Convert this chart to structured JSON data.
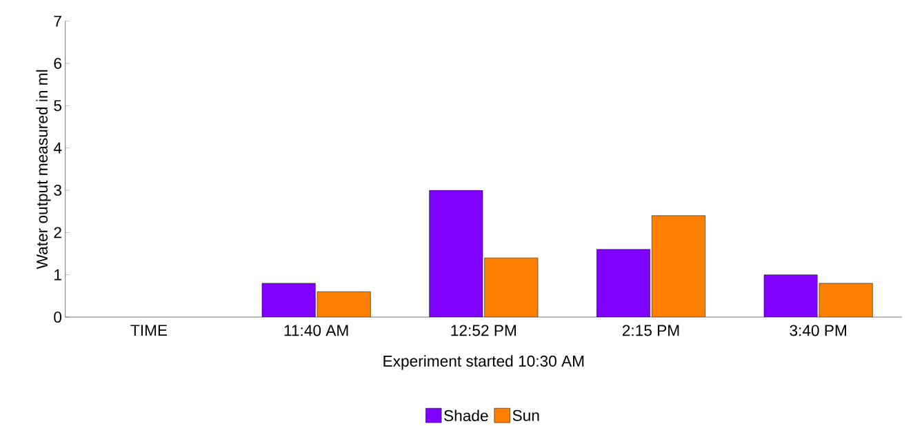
{
  "chart_data": {
    "type": "bar",
    "categories": [
      "TIME",
      "11:40 AM",
      "12:52 PM",
      "2:15 PM",
      "3:40 PM"
    ],
    "series": [
      {
        "name": "Shade",
        "color": "#8000ff",
        "values": [
          null,
          0.8,
          3.0,
          1.6,
          1.0
        ]
      },
      {
        "name": "Sun",
        "color": "#ff8000",
        "values": [
          null,
          0.6,
          1.4,
          2.4,
          0.8
        ]
      }
    ],
    "xlabel": "Experiment started 10:30 AM",
    "ylabel": "Water output measured in ml",
    "ylim": [
      0,
      7
    ],
    "yticks": [
      0,
      1,
      2,
      3,
      4,
      5,
      6,
      7
    ],
    "grid": false,
    "legend": "bottom"
  }
}
